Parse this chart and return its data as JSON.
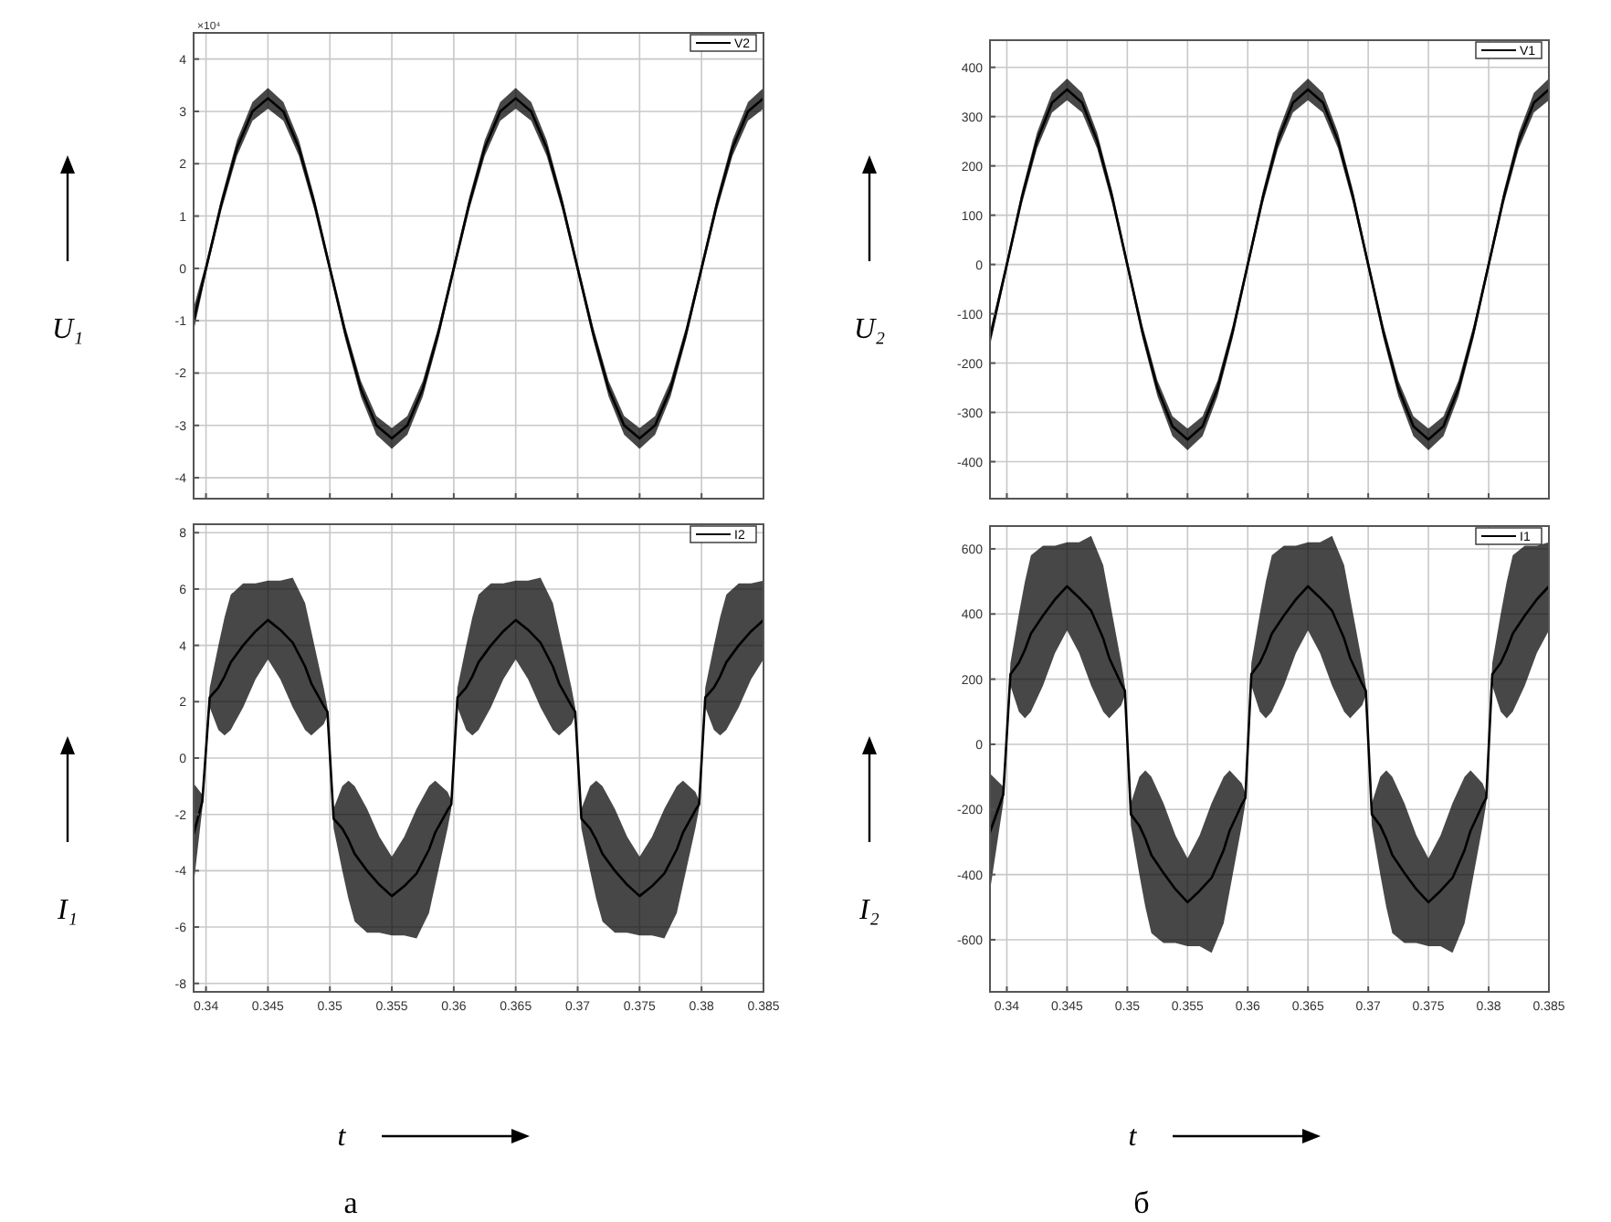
{
  "chart_data": [
    {
      "type": "line",
      "ylabel": "U₁",
      "annotations": [
        "×10⁴"
      ],
      "xlim": [
        0.339,
        0.385
      ],
      "ylim": [
        -4.4,
        4.5
      ],
      "xticks": [
        0.34,
        0.345,
        0.35,
        0.355,
        0.36,
        0.365,
        0.37,
        0.375,
        0.38,
        0.385
      ],
      "yticks": [
        -4,
        -3,
        -2,
        -1,
        0,
        1,
        2,
        3,
        4
      ],
      "tick_labels": "y",
      "grid": true,
      "legend": "top right",
      "x": [
        0.339,
        0.34,
        0.34125,
        0.3425,
        0.34375,
        0.345,
        0.34625,
        0.3475,
        0.34875,
        0.35,
        0.35125,
        0.3525,
        0.35375,
        0.355,
        0.35625,
        0.3575,
        0.35875,
        0.36,
        0.36125,
        0.3625,
        0.36375,
        0.365,
        0.36625,
        0.3675,
        0.36875,
        0.37,
        0.37125,
        0.3725,
        0.37375,
        0.375,
        0.37625,
        0.3775,
        0.37875,
        0.38,
        0.38125,
        0.3825,
        0.38375,
        0.385
      ],
      "series": [
        {
          "name": "V2",
          "color": "#000000",
          "values": [
            -1.0,
            0,
            1.24,
            2.3,
            3.0,
            3.25,
            3.0,
            2.3,
            1.24,
            0,
            -1.24,
            -2.3,
            -3.0,
            -3.25,
            -3.0,
            -2.3,
            -1.24,
            0,
            1.24,
            2.3,
            3.0,
            3.25,
            3.0,
            2.3,
            1.24,
            0,
            -1.24,
            -2.3,
            -3.0,
            -3.25,
            -3.0,
            -2.3,
            -1.24,
            0,
            1.24,
            2.3,
            3.0,
            3.25
          ],
          "lower": [
            -1.2,
            -0.1,
            1.12,
            2.15,
            2.82,
            3.05,
            2.82,
            2.15,
            1.12,
            -0.1,
            -1.36,
            -2.45,
            -3.18,
            -3.45,
            -3.18,
            -2.45,
            -1.36,
            -0.1,
            1.12,
            2.15,
            2.82,
            3.05,
            2.82,
            2.15,
            1.12,
            -0.1,
            -1.36,
            -2.45,
            -3.18,
            -3.45,
            -3.18,
            -2.45,
            -1.36,
            -0.1,
            1.12,
            2.15,
            2.82,
            3.05
          ],
          "upper": [
            -0.75,
            0.1,
            1.36,
            2.45,
            3.18,
            3.45,
            3.18,
            2.45,
            1.36,
            0.1,
            -1.12,
            -2.15,
            -2.82,
            -3.05,
            -2.82,
            -2.15,
            -1.12,
            0.1,
            1.36,
            2.45,
            3.18,
            3.45,
            3.18,
            2.45,
            1.36,
            0.1,
            -1.12,
            -2.15,
            -2.82,
            -3.05,
            -2.82,
            -2.15,
            -1.12,
            0.1,
            1.36,
            2.45,
            3.18,
            3.45
          ]
        }
      ]
    },
    {
      "type": "line",
      "ylabel": "U₂",
      "xlim": [
        0.3386,
        0.385
      ],
      "ylim": [
        -475,
        455
      ],
      "xticks": [
        0.34,
        0.345,
        0.35,
        0.355,
        0.36,
        0.365,
        0.37,
        0.375,
        0.38,
        0.385
      ],
      "yticks": [
        -400,
        -300,
        -200,
        -100,
        0,
        100,
        200,
        300,
        400
      ],
      "tick_labels": "y",
      "grid": true,
      "legend": "top right",
      "x": [
        0.3386,
        0.34,
        0.34125,
        0.3425,
        0.34375,
        0.345,
        0.34625,
        0.3475,
        0.34875,
        0.35,
        0.35125,
        0.3525,
        0.35375,
        0.355,
        0.35625,
        0.3575,
        0.35875,
        0.36,
        0.36125,
        0.3625,
        0.36375,
        0.365,
        0.36625,
        0.3675,
        0.36875,
        0.37,
        0.37125,
        0.3725,
        0.37375,
        0.375,
        0.37625,
        0.3775,
        0.37875,
        0.38,
        0.38125,
        0.3825,
        0.38375,
        0.385
      ],
      "series": [
        {
          "name": "V1",
          "color": "#000000",
          "values": [
            -150,
            0,
            136,
            251,
            328,
            355,
            328,
            251,
            136,
            0,
            -136,
            -251,
            -328,
            -355,
            -328,
            -251,
            -136,
            0,
            136,
            251,
            328,
            355,
            328,
            251,
            136,
            0,
            -136,
            -251,
            -328,
            -355,
            -328,
            -251,
            -136,
            0,
            136,
            251,
            328,
            355
          ],
          "lower": [
            -165,
            -10,
            123,
            235,
            308,
            333,
            308,
            235,
            123,
            -10,
            -149,
            -267,
            -348,
            -377,
            -348,
            -267,
            -149,
            -10,
            123,
            235,
            308,
            333,
            308,
            235,
            123,
            -10,
            -149,
            -267,
            -348,
            -377,
            -348,
            -267,
            -149,
            -10,
            123,
            235,
            308,
            333
          ],
          "upper": [
            -135,
            10,
            149,
            267,
            348,
            377,
            348,
            267,
            149,
            10,
            -123,
            -235,
            -308,
            -333,
            -308,
            -235,
            -123,
            10,
            149,
            267,
            348,
            377,
            348,
            267,
            149,
            10,
            -123,
            -235,
            -308,
            -333,
            -308,
            -235,
            -123,
            10,
            149,
            267,
            348,
            377
          ]
        }
      ]
    },
    {
      "type": "line",
      "ylabel": "I₁",
      "xlabel": "t",
      "annotations": [
        "а"
      ],
      "xlim": [
        0.339,
        0.385
      ],
      "ylim": [
        -8.3,
        8.3
      ],
      "xticks": [
        0.34,
        0.345,
        0.35,
        0.355,
        0.36,
        0.365,
        0.37,
        0.375,
        0.38,
        0.385
      ],
      "yticks": [
        -8,
        -6,
        -4,
        -2,
        0,
        2,
        4,
        6,
        8
      ],
      "grid": true,
      "legend": "top right",
      "x": [
        0.339,
        0.3397,
        0.3403,
        0.341,
        0.3415,
        0.342,
        0.343,
        0.344,
        0.345,
        0.346,
        0.347,
        0.348,
        0.3485,
        0.3495,
        0.3498,
        0.3503,
        0.351,
        0.3515,
        0.352,
        0.353,
        0.354,
        0.355,
        0.356,
        0.357,
        0.358,
        0.3585,
        0.3595,
        0.3598,
        0.3603,
        0.361,
        0.3615,
        0.362,
        0.363,
        0.364,
        0.365,
        0.366,
        0.367,
        0.368,
        0.3685,
        0.3695,
        0.3698,
        0.3703,
        0.371,
        0.3715,
        0.372,
        0.373,
        0.374,
        0.375,
        0.376,
        0.377,
        0.378,
        0.3785,
        0.3795,
        0.3798,
        0.3803,
        0.381,
        0.3815,
        0.382,
        0.383,
        0.384,
        0.385
      ],
      "series": [
        {
          "name": "I2",
          "color": "#000000",
          "values": [
            -2.7,
            -1.55,
            2.15,
            2.5,
            2.9,
            3.4,
            4.0,
            4.5,
            4.9,
            4.55,
            4.1,
            3.25,
            2.65,
            1.85,
            1.65,
            -2.15,
            -2.5,
            -2.9,
            -3.4,
            -4.0,
            -4.5,
            -4.9,
            -4.55,
            -4.1,
            -3.25,
            -2.65,
            -1.85,
            -1.65,
            2.15,
            2.5,
            2.9,
            3.4,
            4.0,
            4.5,
            4.9,
            4.55,
            4.1,
            3.25,
            2.65,
            1.85,
            1.65,
            -2.15,
            -2.5,
            -2.9,
            -3.4,
            -4.0,
            -4.5,
            -4.9,
            -4.55,
            -4.1,
            -3.25,
            -2.65,
            -1.85,
            -1.65,
            2.15,
            2.5,
            2.9,
            3.4,
            4.0,
            4.5,
            4.9
          ],
          "lower": [
            -4.5,
            -1.8,
            1.8,
            1.0,
            0.8,
            1.0,
            1.8,
            2.8,
            3.5,
            2.8,
            1.8,
            1.0,
            0.8,
            1.2,
            1.5,
            -2.5,
            -4.0,
            -5.0,
            -5.8,
            -6.2,
            -6.2,
            -6.3,
            -6.3,
            -6.4,
            -5.5,
            -4.5,
            -2.5,
            -1.8,
            1.8,
            1.0,
            0.8,
            1.0,
            1.8,
            2.8,
            3.5,
            2.8,
            1.8,
            1.0,
            0.8,
            1.2,
            1.5,
            -2.5,
            -4.0,
            -5.0,
            -5.8,
            -6.2,
            -6.2,
            -6.3,
            -6.3,
            -6.4,
            -5.5,
            -4.5,
            -2.5,
            -1.8,
            1.8,
            1.0,
            0.8,
            1.0,
            1.8,
            2.8,
            3.5
          ],
          "upper": [
            -0.9,
            -1.3,
            2.5,
            4.0,
            5.0,
            5.8,
            6.2,
            6.2,
            6.3,
            6.3,
            6.4,
            5.5,
            4.5,
            2.5,
            1.8,
            -1.8,
            -1.0,
            -0.8,
            -1.0,
            -1.8,
            -2.8,
            -3.5,
            -2.8,
            -1.8,
            -1.0,
            -0.8,
            -1.2,
            -1.5,
            2.5,
            4.0,
            5.0,
            5.8,
            6.2,
            6.2,
            6.3,
            6.3,
            6.4,
            5.5,
            4.5,
            2.5,
            1.8,
            -1.8,
            -1.0,
            -0.8,
            -1.0,
            -1.8,
            -2.8,
            -3.5,
            -2.8,
            -1.8,
            -1.0,
            -0.8,
            -1.2,
            -1.5,
            2.5,
            4.0,
            5.0,
            5.8,
            6.2,
            6.2,
            6.3
          ]
        }
      ]
    },
    {
      "type": "line",
      "ylabel": "I₂",
      "xlabel": "t",
      "annotations": [
        "б"
      ],
      "xlim": [
        0.3386,
        0.385
      ],
      "ylim": [
        -760,
        670
      ],
      "xticks": [
        0.34,
        0.345,
        0.35,
        0.355,
        0.36,
        0.365,
        0.37,
        0.375,
        0.38,
        0.385
      ],
      "yticks": [
        -600,
        -400,
        -200,
        0,
        200,
        400,
        600
      ],
      "grid": true,
      "legend": "top right",
      "x": [
        0.3386,
        0.3397,
        0.3403,
        0.341,
        0.3415,
        0.342,
        0.343,
        0.344,
        0.345,
        0.346,
        0.347,
        0.348,
        0.3485,
        0.3495,
        0.3498,
        0.3503,
        0.351,
        0.3515,
        0.352,
        0.353,
        0.354,
        0.355,
        0.356,
        0.357,
        0.358,
        0.3585,
        0.3595,
        0.3598,
        0.3603,
        0.361,
        0.3615,
        0.362,
        0.363,
        0.364,
        0.365,
        0.366,
        0.367,
        0.368,
        0.3685,
        0.3695,
        0.3698,
        0.3703,
        0.371,
        0.3715,
        0.372,
        0.373,
        0.374,
        0.375,
        0.376,
        0.377,
        0.378,
        0.3785,
        0.3795,
        0.3798,
        0.3803,
        0.381,
        0.3815,
        0.382,
        0.383,
        0.384,
        0.385
      ],
      "series": [
        {
          "name": "I1",
          "color": "#000000",
          "values": [
            -270,
            -155,
            215,
            250,
            290,
            340,
            395,
            445,
            485,
            450,
            410,
            325,
            265,
            185,
            165,
            -215,
            -250,
            -290,
            -340,
            -395,
            -445,
            -485,
            -450,
            -410,
            -325,
            -265,
            -185,
            -165,
            215,
            250,
            290,
            340,
            395,
            445,
            485,
            450,
            410,
            325,
            265,
            185,
            165,
            -215,
            -250,
            -290,
            -340,
            -395,
            -445,
            -485,
            -450,
            -410,
            -325,
            -265,
            -185,
            -165,
            215,
            250,
            290,
            340,
            395,
            445,
            485
          ],
          "lower": [
            -450,
            -180,
            180,
            100,
            80,
            100,
            180,
            280,
            350,
            280,
            180,
            100,
            80,
            120,
            150,
            -250,
            -400,
            -500,
            -580,
            -610,
            -610,
            -620,
            -620,
            -640,
            -550,
            -450,
            -250,
            -180,
            180,
            100,
            80,
            100,
            180,
            280,
            350,
            280,
            180,
            100,
            80,
            120,
            150,
            -250,
            -400,
            -500,
            -580,
            -610,
            -610,
            -620,
            -620,
            -640,
            -550,
            -450,
            -250,
            -180,
            180,
            100,
            80,
            100,
            180,
            280,
            350
          ],
          "upper": [
            -90,
            -130,
            250,
            400,
            500,
            580,
            610,
            610,
            620,
            620,
            640,
            550,
            450,
            250,
            180,
            -180,
            -100,
            -80,
            -100,
            -180,
            -280,
            -350,
            -280,
            -180,
            -100,
            -80,
            -120,
            -150,
            250,
            400,
            500,
            580,
            610,
            610,
            620,
            620,
            640,
            550,
            450,
            250,
            180,
            -180,
            -100,
            -80,
            -100,
            -180,
            -280,
            -350,
            -280,
            -180,
            -100,
            -80,
            -120,
            -150,
            250,
            400,
            500,
            580,
            610,
            610,
            620
          ]
        }
      ]
    }
  ]
}
